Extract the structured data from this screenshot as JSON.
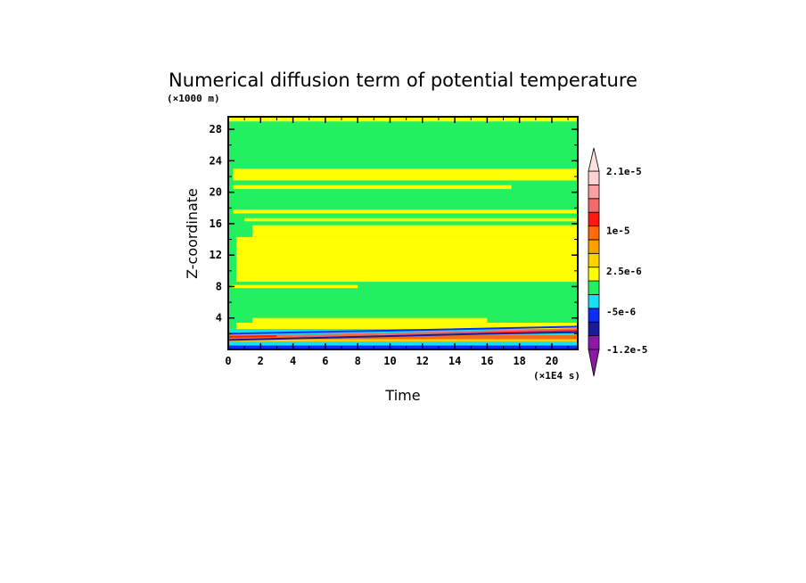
{
  "chart_data": {
    "type": "heatmap",
    "title": "Numerical diffusion term of potential temperature",
    "xlabel": "Time",
    "ylabel": "Z-coordinate",
    "x_unit_label": "(×1E4 s)",
    "y_unit_label": "(×1000 m)",
    "xlim": [
      0,
      21.6
    ],
    "ylim": [
      0,
      29.6
    ],
    "x_ticks": [
      "0",
      "2",
      "4",
      "6",
      "8",
      "10",
      "12",
      "14",
      "16",
      "18",
      "20"
    ],
    "y_ticks": [
      "4",
      "8",
      "12",
      "16",
      "20",
      "24",
      "28"
    ],
    "colorbar": {
      "labels": [
        "2.1e-5",
        "1e-5",
        "2.5e-6",
        "-5e-6",
        "-1.2e-5"
      ],
      "label_values": [
        2.1e-05,
        1e-05,
        2.5e-06,
        -5e-06,
        -1.2e-05
      ],
      "bin_colors": [
        "#8a1aa6",
        "#1a1aa0",
        "#0a2ff2",
        "#19e0f0",
        "#22f060",
        "#ffff00",
        "#ffd200",
        "#ffa000",
        "#ff6a10",
        "#ff1a10",
        "#f26a6a",
        "#f9a0a0",
        "#fcd2d2"
      ],
      "under_color": "#8a1aa6",
      "over_color": "#fde0e0"
    },
    "fields": {
      "background_color": "#22f060",
      "bands": [
        {
          "color": "#ffff00",
          "y0": 29.0,
          "y1": 29.6,
          "x0": 0,
          "x1": 21.6
        },
        {
          "color": "#ffff00",
          "y0": 21.5,
          "y1": 23.0,
          "x0": 0.3,
          "x1": 21.6
        },
        {
          "color": "#ffff00",
          "y0": 20.4,
          "y1": 20.9,
          "x0": 0.3,
          "x1": 17.5
        },
        {
          "color": "#ffff00",
          "y0": 17.3,
          "y1": 17.8,
          "x0": 0.3,
          "x1": 21.6
        },
        {
          "color": "#ffff00",
          "y0": 16.3,
          "y1": 16.7,
          "x0": 1.0,
          "x1": 21.6
        },
        {
          "color": "#ffff00",
          "y0": 14.3,
          "y1": 15.8,
          "x0": 1.5,
          "x1": 21.6
        },
        {
          "color": "#ffff00",
          "y0": 8.6,
          "y1": 14.3,
          "x0": 0.5,
          "x1": 21.6
        },
        {
          "color": "#ffff00",
          "y0": 7.8,
          "y1": 8.2,
          "x0": 0.2,
          "x1": 8.0
        },
        {
          "color": "#ffff00",
          "y0": 3.4,
          "y1": 4.0,
          "x0": 1.5,
          "x1": 16.0
        },
        {
          "color": "#ffff00",
          "y0": 2.4,
          "y1": 3.4,
          "x0": 0.5,
          "x1": 21.6
        },
        {
          "color": "#19e0f0",
          "y0": 1.8,
          "y1": 2.6,
          "x0": 0,
          "x1": 21.6
        },
        {
          "color": "#ff6a10",
          "y0": 1.3,
          "y1": 1.8,
          "x0": 0,
          "x1": 21.6
        },
        {
          "color": "#ffd200",
          "y0": 1.0,
          "y1": 1.3,
          "x0": 0,
          "x1": 21.6
        },
        {
          "color": "#19e0f0",
          "y0": 0.5,
          "y1": 1.0,
          "x0": 0,
          "x1": 21.6
        },
        {
          "color": "#0a2ff2",
          "y0": 0.0,
          "y1": 0.5,
          "x0": 0,
          "x1": 21.6
        }
      ],
      "lines": [
        {
          "color": "#1a1aa0",
          "points": [
            [
              0,
              1.2
            ],
            [
              8,
              1.6
            ],
            [
              16,
              2.0
            ],
            [
              21.6,
              2.2
            ]
          ]
        },
        {
          "color": "#ff1a10",
          "points": [
            [
              0,
              1.6
            ],
            [
              10,
              2.0
            ],
            [
              21.6,
              2.4
            ]
          ]
        },
        {
          "color": "#0a2ff2",
          "points": [
            [
              0,
              2.0
            ],
            [
              10,
              2.4
            ],
            [
              21.6,
              2.9
            ]
          ]
        },
        {
          "color": "#f26a6a",
          "points": [
            [
              3,
              1.7
            ],
            [
              12,
              2.1
            ],
            [
              21.6,
              2.6
            ]
          ]
        }
      ]
    }
  }
}
